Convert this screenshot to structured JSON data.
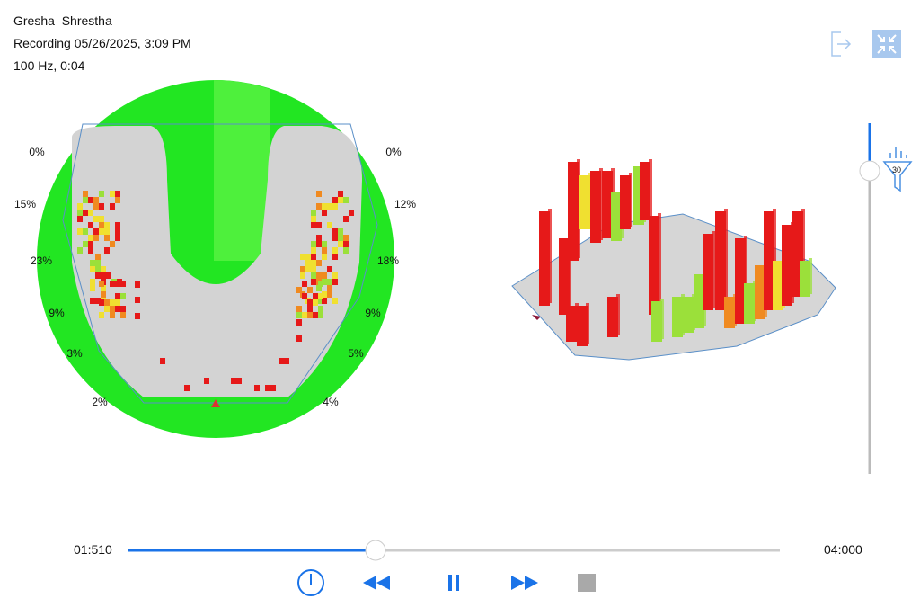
{
  "header": {
    "name": "Gresha  Shrestha",
    "recording": "Recording 05/26/2025, 3:09 PM",
    "info": "100 Hz, 0:04"
  },
  "map_2d": {
    "left_labels": [
      "0%",
      "15%",
      "23%",
      "9%",
      "3%",
      "2%"
    ],
    "right_labels": [
      "0%",
      "12%",
      "18%",
      "9%",
      "5%",
      "4%"
    ]
  },
  "filter": {
    "badge": "30"
  },
  "player": {
    "elapsed": "01:510",
    "total": "04:000"
  }
}
